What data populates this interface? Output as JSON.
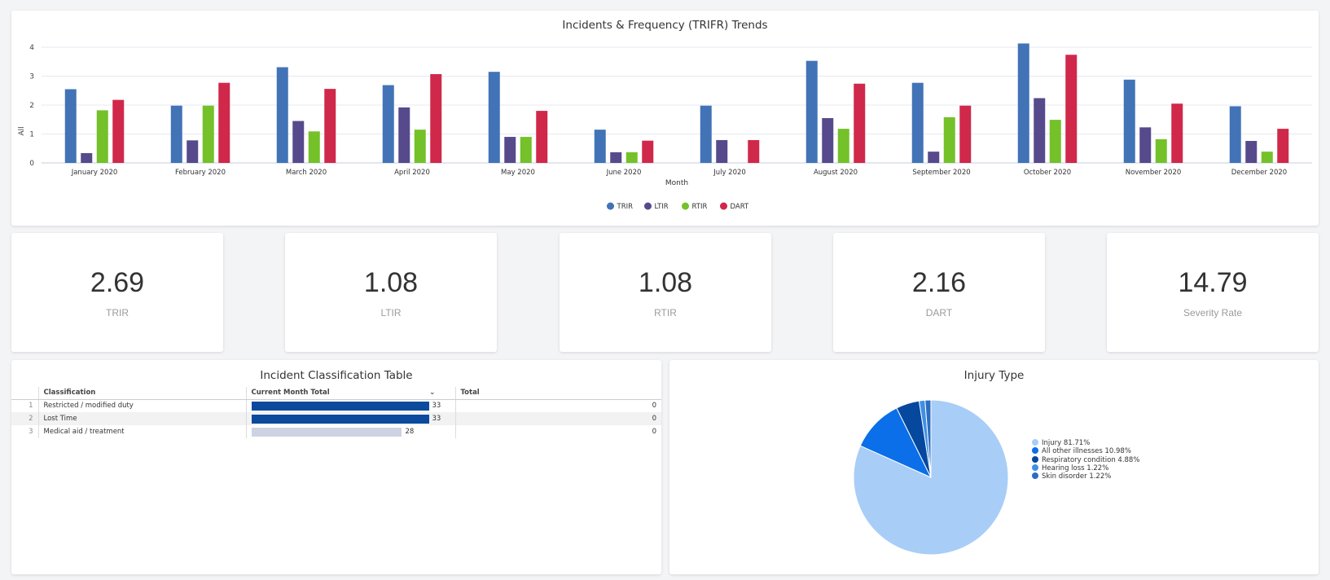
{
  "trend": {
    "title": "Incidents & Frequency (TRIFR) Trends"
  },
  "chart_data": [
    {
      "type": "bar",
      "title": "Incidents & Frequency (TRIFR) Trends",
      "xlabel": "Month",
      "ylabel": "All",
      "ylim": [
        0,
        4
      ],
      "yticks": [
        0,
        1,
        2,
        3,
        4
      ],
      "grid": true,
      "legend": "bottom",
      "categories": [
        "January 2020",
        "February 2020",
        "March 2020",
        "April 2020",
        "May 2020",
        "June 2020",
        "July 2020",
        "August 2020",
        "September 2020",
        "October 2020",
        "November 2020",
        "December 2020"
      ],
      "series": [
        {
          "name": "TRIR",
          "color": "#4273b7",
          "values": [
            2.55,
            1.98,
            3.31,
            2.69,
            3.15,
            1.15,
            1.98,
            3.53,
            2.77,
            4.13,
            2.88,
            1.96
          ]
        },
        {
          "name": "LTIR",
          "color": "#564a8c",
          "values": [
            0.34,
            0.78,
            1.45,
            1.92,
            0.9,
            0.37,
            0.79,
            1.55,
            0.39,
            2.24,
            1.23,
            0.76
          ]
        },
        {
          "name": "RTIR",
          "color": "#74c12a",
          "values": [
            1.82,
            1.98,
            1.09,
            1.15,
            0.9,
            0.37,
            0,
            1.18,
            1.58,
            1.49,
            0.82,
            0.39
          ]
        },
        {
          "name": "DART",
          "color": "#d0284a",
          "values": [
            2.18,
            2.77,
            2.56,
            3.07,
            1.8,
            0.77,
            0.79,
            2.74,
            1.98,
            3.74,
            2.05,
            1.18
          ]
        }
      ]
    },
    {
      "type": "pie",
      "title": "Injury Type",
      "legend": "right",
      "slices": [
        {
          "label": "Injury 81.71%",
          "value": 81.71,
          "color": "#a8cdf7"
        },
        {
          "label": "All other illnesses 10.98%",
          "value": 10.98,
          "color": "#0a6fe8"
        },
        {
          "label": "Respiratory condition 4.88%",
          "value": 4.88,
          "color": "#06489e"
        },
        {
          "label": "Hearing loss 1.22%",
          "value": 1.22,
          "color": "#3f8fe6"
        },
        {
          "label": "Skin disorder 1.22%",
          "value": 1.22,
          "color": "#2c6dc0"
        }
      ]
    }
  ],
  "kpis": [
    {
      "value": "2.69",
      "label": "TRIR"
    },
    {
      "value": "1.08",
      "label": "LTIR"
    },
    {
      "value": "1.08",
      "label": "RTIR"
    },
    {
      "value": "2.16",
      "label": "DART"
    },
    {
      "value": "14.79",
      "label": "Severity Rate"
    }
  ],
  "table": {
    "title": "Incident Classification Table",
    "headers": [
      "Classification",
      "Current Month Total",
      "Total"
    ],
    "max_value": 33,
    "rows": [
      {
        "num": "1",
        "classification": "Restricted / modified duty",
        "current": "33",
        "current_value": 33,
        "total": "0",
        "bar_color": "#0b4a9c"
      },
      {
        "num": "2",
        "classification": "Lost Time",
        "current": "33",
        "current_value": 33,
        "total": "0",
        "bar_color": "#0b4a9c"
      },
      {
        "num": "3",
        "classification": "Medical aid / treatment",
        "current": "28",
        "current_value": 28,
        "total": "0",
        "bar_color": "#cdd3e3"
      }
    ]
  },
  "pie": {
    "title": "Injury Type"
  }
}
